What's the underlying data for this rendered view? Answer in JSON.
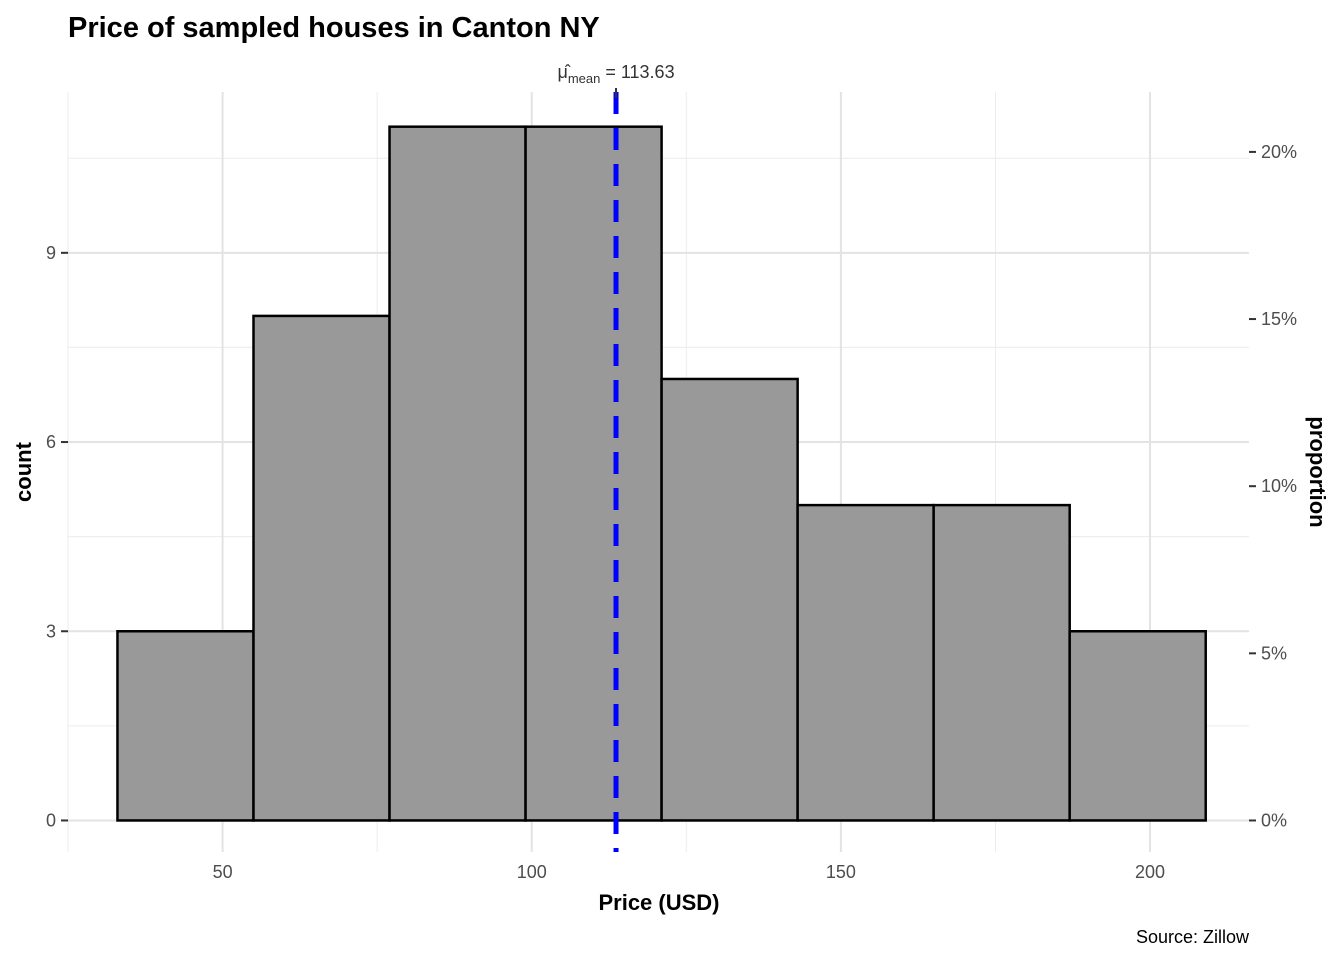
{
  "chart_data": {
    "type": "bar",
    "title": "Price of sampled houses in Canton NY",
    "xlabel": "Price (USD)",
    "ylabel": "count",
    "y2label": "proportion",
    "caption": "Source: Zillow",
    "bins": [
      {
        "x0": 33,
        "x1": 55,
        "count": 3
      },
      {
        "x0": 55,
        "x1": 77,
        "count": 8
      },
      {
        "x0": 77,
        "x1": 99,
        "count": 11
      },
      {
        "x0": 99,
        "x1": 121,
        "count": 11
      },
      {
        "x0": 121,
        "x1": 143,
        "count": 7
      },
      {
        "x0": 143,
        "x1": 165,
        "count": 5
      },
      {
        "x0": 165,
        "x1": 187,
        "count": 5
      },
      {
        "x0": 187,
        "x1": 209,
        "count": 3
      }
    ],
    "total": 53,
    "xlim": [
      25,
      216
    ],
    "ylim": [
      -0.5,
      11.55
    ],
    "x_ticks": [
      50,
      100,
      150,
      200
    ],
    "x_tick_labels": [
      "50",
      "100",
      "150",
      "200"
    ],
    "y_ticks": [
      0,
      3,
      6,
      9
    ],
    "y_tick_labels": [
      "0",
      "3",
      "6",
      "9"
    ],
    "y2_ticks": [
      0,
      0.05,
      0.1,
      0.15,
      0.2
    ],
    "y2_tick_labels": [
      "0%",
      "5%",
      "10%",
      "15%",
      "20%"
    ],
    "mean": {
      "value": 113.63,
      "symbol": "μ̂",
      "subscript": "mean",
      "label": "= 113.63",
      "color": "#0000ff"
    },
    "bar_fill": "#999999",
    "bar_stroke": "#000000",
    "grid": true
  }
}
